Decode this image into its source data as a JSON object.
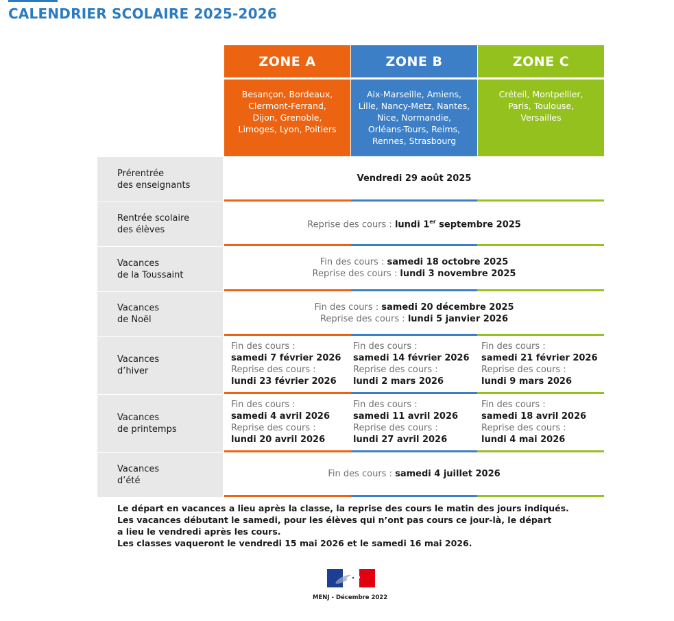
{
  "title": "CALENDRIER SCOLAIRE 2025-2026",
  "colors": {
    "zone_a": "#ec6411",
    "zone_b": "#3d7fc6",
    "zone_c": "#95c11f",
    "title": "#2b7bc0"
  },
  "zones": [
    {
      "name": "ZONE A",
      "cities": [
        "Besançon, Bordeaux,",
        "Clermont-Ferrand,",
        "Dijon, Grenoble,",
        "Limoges, Lyon, Poitiers"
      ]
    },
    {
      "name": "ZONE B",
      "cities": [
        "Aix-Marseille, Amiens,",
        "Lille, Nancy-Metz, Nantes,",
        "Nice, Normandie,",
        "Orléans-Tours, Reims,",
        "Rennes, Strasbourg"
      ]
    },
    {
      "name": "ZONE C",
      "cities": [
        "Créteil, Montpellier,",
        "Paris, Toulouse,",
        "Versailles"
      ]
    }
  ],
  "rows": {
    "prerentree": {
      "label": [
        "Prérentrée",
        "des enseignants"
      ],
      "value": "Vendredi 29 août 2025"
    },
    "rentree": {
      "label": [
        "Rentrée scolaire",
        "des élèves"
      ],
      "prefix": "Reprise des cours : ",
      "value_a": "lundi 1",
      "value_sup": "er",
      "value_b": " septembre 2025"
    },
    "toussaint": {
      "label": [
        "Vacances",
        "de la Toussaint"
      ],
      "end_prefix": "Fin des cours : ",
      "end_value": "samedi 18 octobre 2025",
      "resume_prefix": "Reprise des cours : ",
      "resume_value": "lundi 3 novembre 2025"
    },
    "noel": {
      "label": [
        "Vacances",
        "de Noël"
      ],
      "end_prefix": "Fin des cours : ",
      "end_value": "samedi 20 décembre 2025",
      "resume_prefix": "Reprise des cours : ",
      "resume_value": "lundi 5 janvier 2026"
    },
    "hiver": {
      "label": [
        "Vacances",
        "d’hiver"
      ],
      "end_prefix": "Fin des cours :",
      "resume_prefix": "Reprise des cours :",
      "zones": [
        {
          "end": "samedi 7 février 2026",
          "resume": "lundi 23 février 2026"
        },
        {
          "end": "samedi 14 février 2026",
          "resume": "lundi 2 mars 2026"
        },
        {
          "end": "samedi 21 février 2026",
          "resume": "lundi 9 mars 2026"
        }
      ]
    },
    "printemps": {
      "label": [
        "Vacances",
        "de printemps"
      ],
      "end_prefix": "Fin des cours :",
      "resume_prefix": "Reprise des cours :",
      "zones": [
        {
          "end": "samedi 4 avril 2026",
          "resume": "lundi 20 avril 2026"
        },
        {
          "end": "samedi 11 avril 2026",
          "resume": "lundi 27 avril 2026"
        },
        {
          "end": "samedi 18 avril 2026",
          "resume": "lundi 4 mai 2026"
        }
      ]
    },
    "ete": {
      "label": [
        "Vacances",
        "d’été"
      ],
      "end_prefix": "Fin des cours : ",
      "end_value": "samedi 4 juillet 2026"
    }
  },
  "notes": [
    "Le départ en vacances a lieu après la classe, la reprise des cours le matin des jours indiqués.",
    "Les vacances débutant le samedi, pour les élèves qui n’ont pas cours ce jour-là, le départ",
    "a lieu le vendredi après les cours.",
    "Les classes vaqueront le vendredi 15 mai 2026 et le samedi 16 mai 2026."
  ],
  "footer": "MENJ - Décembre 2022",
  "logo_icon": "marianne-flag-logo"
}
